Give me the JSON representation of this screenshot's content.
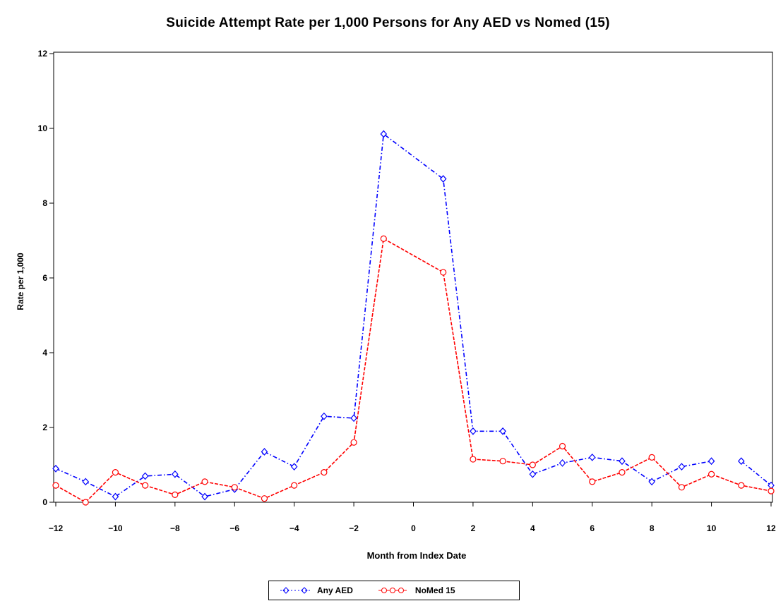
{
  "chart_data": {
    "type": "line",
    "title": "Suicide Attempt Rate per 1,000 Persons for Any AED vs Nomed (15)",
    "xlabel": "Month from Index Date",
    "ylabel": "Rate per 1,000",
    "xlim": [
      -12,
      12
    ],
    "ylim": [
      0,
      12
    ],
    "xticks": [
      "−12",
      "−10",
      "−8",
      "−6",
      "−4",
      "−2",
      "0",
      "2",
      "4",
      "6",
      "8",
      "10",
      "12"
    ],
    "yticks": [
      "0",
      "2",
      "4",
      "6",
      "8",
      "10",
      "12"
    ],
    "legend_position": "bottom",
    "grid": false,
    "series": [
      {
        "name": "Any AED",
        "color": "#0000ff",
        "marker": "diamond",
        "points": [
          [
            -12,
            0.9
          ],
          [
            -11,
            0.55
          ],
          [
            -10,
            0.15
          ],
          [
            -9,
            0.7
          ],
          [
            -8,
            0.75
          ],
          [
            -7,
            0.15
          ],
          [
            -6,
            0.35
          ],
          [
            -5,
            1.35
          ],
          [
            -4,
            0.95
          ],
          [
            -3,
            2.3
          ],
          [
            -2,
            2.25
          ],
          [
            -1,
            9.85
          ],
          [
            1,
            8.65
          ],
          [
            2,
            1.9
          ],
          [
            3,
            1.9
          ],
          [
            4,
            0.75
          ],
          [
            5,
            1.05
          ],
          [
            6,
            1.2
          ],
          [
            7,
            1.1
          ],
          [
            8,
            0.55
          ],
          [
            9,
            0.95
          ],
          [
            10,
            1.1
          ],
          null,
          [
            11,
            1.1
          ],
          [
            12,
            0.45
          ]
        ]
      },
      {
        "name": "NoMed 15",
        "color": "#ff0000",
        "marker": "circle",
        "points": [
          [
            -12,
            0.45
          ],
          [
            -11,
            0.0
          ],
          [
            -10,
            0.8
          ],
          [
            -9,
            0.45
          ],
          [
            -8,
            0.2
          ],
          [
            -7,
            0.55
          ],
          [
            -6,
            0.4
          ],
          [
            -5,
            0.1
          ],
          [
            -4,
            0.45
          ],
          [
            -3,
            0.8
          ],
          [
            -2,
            1.6
          ],
          [
            -1,
            7.05
          ],
          [
            1,
            6.15
          ],
          [
            2,
            1.15
          ],
          [
            3,
            1.1
          ],
          [
            4,
            1.0
          ],
          [
            5,
            1.5
          ],
          [
            6,
            0.55
          ],
          [
            7,
            0.8
          ],
          [
            8,
            1.2
          ],
          [
            9,
            0.4
          ],
          [
            10,
            0.75
          ],
          [
            11,
            0.45
          ],
          [
            12,
            0.3
          ]
        ]
      }
    ]
  }
}
